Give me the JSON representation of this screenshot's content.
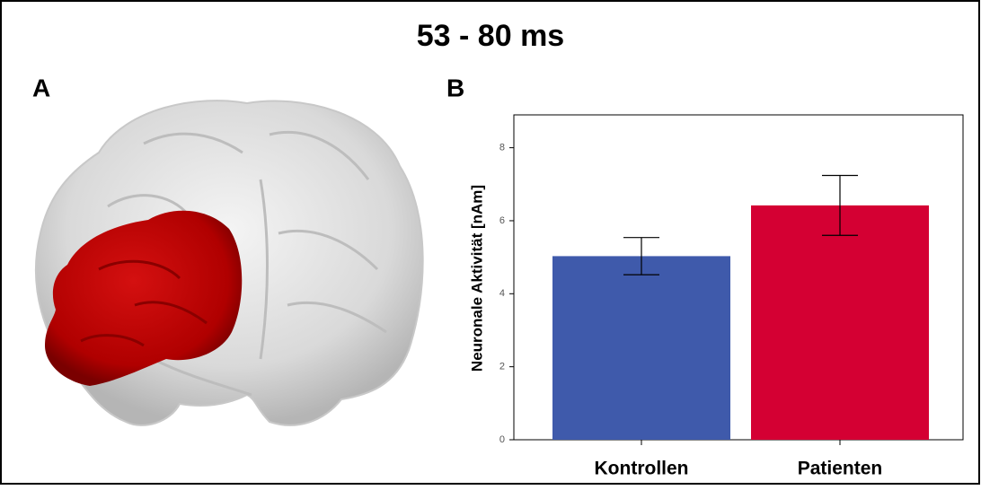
{
  "title": "53 - 80 ms",
  "panel_labels": [
    "A",
    "B"
  ],
  "chart_data": {
    "type": "bar",
    "y_label": "Neuronale Aktivität [nAm]",
    "categories": [
      "Kontrollen",
      "Patienten"
    ],
    "values": [
      5.03,
      6.42
    ],
    "errors": [
      0.51,
      0.82
    ],
    "colors": [
      "#3f5aab",
      "#d40033"
    ],
    "ylim": [
      0,
      8.9
    ],
    "yticks": [
      0,
      2,
      4,
      6,
      8
    ]
  }
}
